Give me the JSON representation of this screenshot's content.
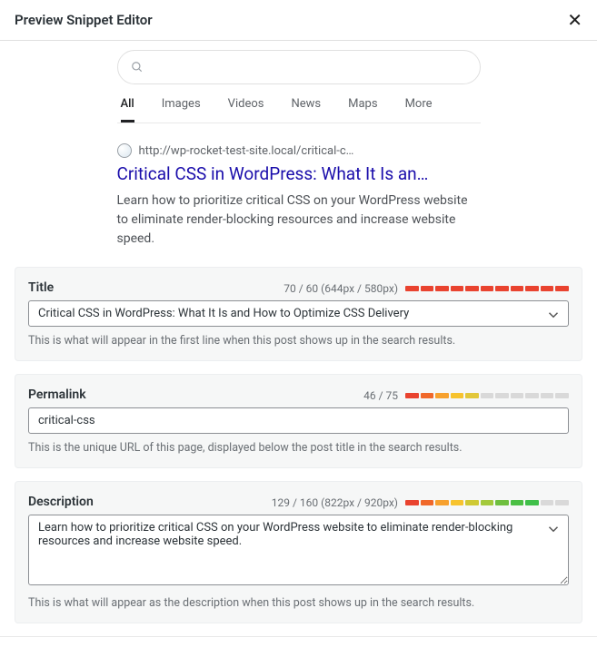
{
  "header": {
    "title": "Preview Snippet Editor"
  },
  "preview": {
    "tabs": [
      "All",
      "Images",
      "Videos",
      "News",
      "Maps",
      "More"
    ],
    "active_tab": 0,
    "url": "http://wp-rocket-test-site.local/critical-c…",
    "title": "Critical CSS in WordPress: What It Is an…",
    "description": "Learn how to prioritize critical CSS on your WordPress website to eliminate render-blocking resources and increase website speed."
  },
  "title_panel": {
    "label": "Title",
    "meta": "70 / 60 (644px / 580px)",
    "value": "Critical CSS in WordPress: What It Is and How to Optimize CSS Delivery",
    "hint": "This is what will appear in the first line when this post shows up in the search results.",
    "colors": [
      "#e9432f",
      "#e9432f",
      "#e9432f",
      "#e9432f",
      "#e9432f",
      "#e9432f",
      "#e9432f",
      "#e9432f",
      "#e9432f",
      "#e9432f",
      "#e9432f"
    ]
  },
  "permalink_panel": {
    "label": "Permalink",
    "meta": "46 / 75",
    "value": "critical-css",
    "hint": "This is the unique URL of this page, displayed below the post title in the search results.",
    "colors": [
      "#e9432f",
      "#f0682a",
      "#f7a12e",
      "#f7c32e",
      "#e2c73a",
      "#d9d9d9",
      "#d9d9d9",
      "#d9d9d9",
      "#d9d9d9",
      "#d9d9d9",
      "#d9d9d9"
    ]
  },
  "description_panel": {
    "label": "Description",
    "meta": "129 / 160 (822px / 920px)",
    "value": "Learn how to prioritize critical CSS on your WordPress website to eliminate render-blocking resources and increase website speed.",
    "hint": "This is what will appear as the description when this post shows up in the search results.",
    "colors": [
      "#e9432f",
      "#f0682a",
      "#f7a12e",
      "#f7c32e",
      "#cfc934",
      "#a3c93c",
      "#6fbf3f",
      "#4bbf44",
      "#3fbf49",
      "#d9d9d9",
      "#d9d9d9"
    ]
  }
}
